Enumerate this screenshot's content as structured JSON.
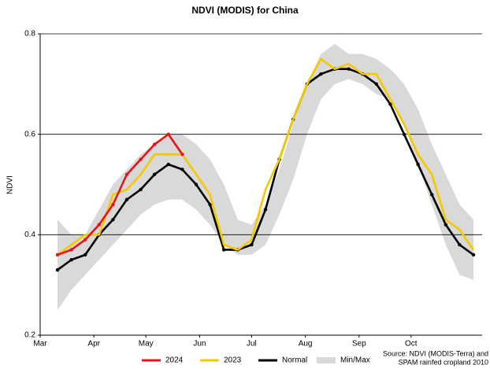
{
  "chart_data": {
    "type": "line",
    "title": "NDVI (MODIS) for China",
    "y_label": "NDVI",
    "source": [
      "Source: NDVI (MODIS-Terra) and",
      "SPAM rainfed cropland 2010"
    ],
    "x": [
      70,
      78,
      86,
      94,
      102,
      110,
      118,
      126,
      134,
      142,
      150,
      158,
      166,
      174,
      182,
      190,
      198,
      206,
      214,
      222,
      230,
      238,
      246,
      254,
      262,
      270,
      278,
      286,
      294,
      302,
      310
    ],
    "xlim": [
      60,
      315
    ],
    "xticks": [
      {
        "value": 60,
        "label": "Mar"
      },
      {
        "value": 91,
        "label": "Apr"
      },
      {
        "value": 121,
        "label": "May"
      },
      {
        "value": 152,
        "label": "Jun"
      },
      {
        "value": 182,
        "label": "Jul"
      },
      {
        "value": 213,
        "label": "Aug"
      },
      {
        "value": 244,
        "label": "Sep"
      },
      {
        "value": 274,
        "label": "Oct"
      }
    ],
    "ylim": [
      0.2,
      0.8
    ],
    "yticks": [
      0.2,
      0.4,
      0.6,
      0.8
    ],
    "grid": true,
    "legend": "bottom",
    "series": [
      {
        "name": "2024",
        "color": "#e8141a",
        "markers": true,
        "values": [
          0.36,
          0.37,
          0.39,
          0.42,
          0.46,
          0.52,
          0.55,
          0.58,
          0.6,
          0.56,
          null,
          null,
          null,
          null,
          null,
          null,
          null,
          null,
          null,
          null,
          null,
          null,
          null,
          null,
          null,
          null,
          null,
          null,
          null,
          null,
          null
        ]
      },
      {
        "name": "2023",
        "color": "#f5c800",
        "markers": false,
        "values": [
          0.36,
          0.38,
          0.4,
          0.4,
          0.48,
          0.49,
          0.52,
          0.56,
          0.56,
          0.56,
          0.52,
          0.48,
          0.38,
          0.37,
          0.39,
          0.49,
          0.55,
          0.63,
          0.7,
          0.75,
          0.73,
          0.74,
          0.72,
          0.72,
          0.67,
          0.62,
          0.56,
          0.52,
          0.43,
          0.41,
          0.37
        ]
      },
      {
        "name": "Normal",
        "color": "#000000",
        "markers": true,
        "values": [
          0.33,
          0.35,
          0.36,
          0.4,
          0.43,
          0.47,
          0.49,
          0.52,
          0.54,
          0.53,
          0.5,
          0.46,
          0.37,
          0.37,
          0.38,
          0.45,
          0.55,
          0.63,
          0.7,
          0.72,
          0.73,
          0.73,
          0.72,
          0.7,
          0.66,
          0.6,
          0.54,
          0.48,
          0.42,
          0.38,
          0.36
        ]
      },
      {
        "name": "Min/Max",
        "color": "#d9d9d9",
        "band": true,
        "high": [
          0.43,
          0.4,
          0.4,
          0.45,
          0.5,
          0.53,
          0.56,
          0.58,
          0.6,
          0.6,
          0.58,
          0.55,
          0.5,
          0.43,
          0.42,
          0.46,
          0.53,
          0.62,
          0.7,
          0.76,
          0.78,
          0.76,
          0.76,
          0.75,
          0.73,
          0.7,
          0.65,
          0.58,
          0.52,
          0.46,
          0.43
        ],
        "low": [
          0.25,
          0.29,
          0.32,
          0.35,
          0.38,
          0.41,
          0.44,
          0.46,
          0.47,
          0.47,
          0.45,
          0.42,
          0.38,
          0.36,
          0.36,
          0.38,
          0.44,
          0.51,
          0.6,
          0.67,
          0.7,
          0.71,
          0.7,
          0.68,
          0.67,
          0.62,
          0.54,
          0.46,
          0.38,
          0.32,
          0.31
        ]
      }
    ]
  }
}
